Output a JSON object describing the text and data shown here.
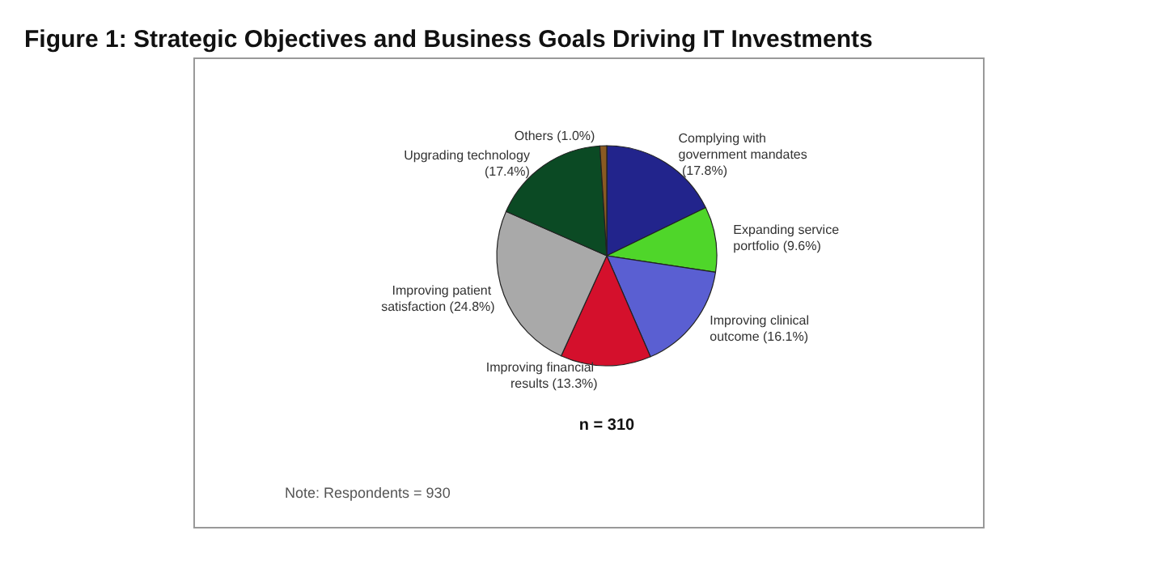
{
  "chart_data": {
    "type": "pie",
    "title": "Figure 1: Strategic Objectives and Business Goals Driving IT Investments",
    "categories": [
      "Complying with government mandates",
      "Expanding service portfolio",
      "Improving clinical outcome",
      "Improving financial results",
      "Improving patient satisfaction",
      "Upgrading technology",
      "Others"
    ],
    "values": [
      17.8,
      9.6,
      16.1,
      13.3,
      24.8,
      17.4,
      1.0
    ],
    "colors": [
      "#22248c",
      "#4fd62a",
      "#5a5fd2",
      "#d4102c",
      "#a9a9a9",
      "#0b4a24",
      "#8a5a22"
    ],
    "value_labels": [
      "(17.8%)",
      "(9.6%)",
      "(16.1%)",
      "(13.3%)",
      "(24.8%)",
      "(17.4%)",
      "(1.0%)"
    ],
    "annotations": [
      "n = 310",
      "Note: Respondents = 930"
    ],
    "legend": false
  }
}
